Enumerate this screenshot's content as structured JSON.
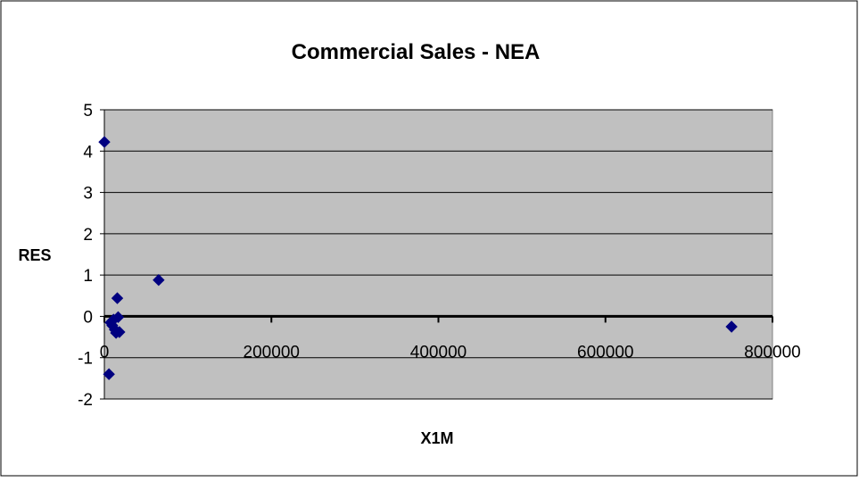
{
  "chart_data": {
    "type": "scatter",
    "title": "Commercial Sales - NEA",
    "xlabel": "X1M",
    "ylabel": "RES",
    "xlim": [
      0,
      800000
    ],
    "ylim": [
      -2,
      5
    ],
    "x_ticks": [
      0,
      200000,
      400000,
      600000,
      800000
    ],
    "x_tick_labels": [
      "0",
      "200000",
      "400000",
      "600000",
      "800000"
    ],
    "y_ticks": [
      -2,
      -1,
      0,
      1,
      2,
      3,
      4,
      5
    ],
    "y_tick_labels": [
      "-2",
      "-1",
      "0",
      "1",
      "2",
      "3",
      "4",
      "5"
    ],
    "grid": "horizontal",
    "legend": "none",
    "points": [
      {
        "x": 0,
        "y": 4.22
      },
      {
        "x": 5500,
        "y": -1.4
      },
      {
        "x": 7500,
        "y": -0.15
      },
      {
        "x": 9500,
        "y": -0.22
      },
      {
        "x": 11000,
        "y": -0.08
      },
      {
        "x": 12500,
        "y": -0.32
      },
      {
        "x": 14000,
        "y": -0.4
      },
      {
        "x": 15500,
        "y": 0.44
      },
      {
        "x": 16500,
        "y": -0.02
      },
      {
        "x": 18000,
        "y": -0.38
      },
      {
        "x": 65000,
        "y": 0.88
      },
      {
        "x": 751000,
        "y": -0.25
      }
    ],
    "colors": {
      "background": "#ffffff",
      "plot_area": "#c0c0c0",
      "marker": "#000080",
      "gridline": "#000000",
      "border": "#000000"
    }
  }
}
